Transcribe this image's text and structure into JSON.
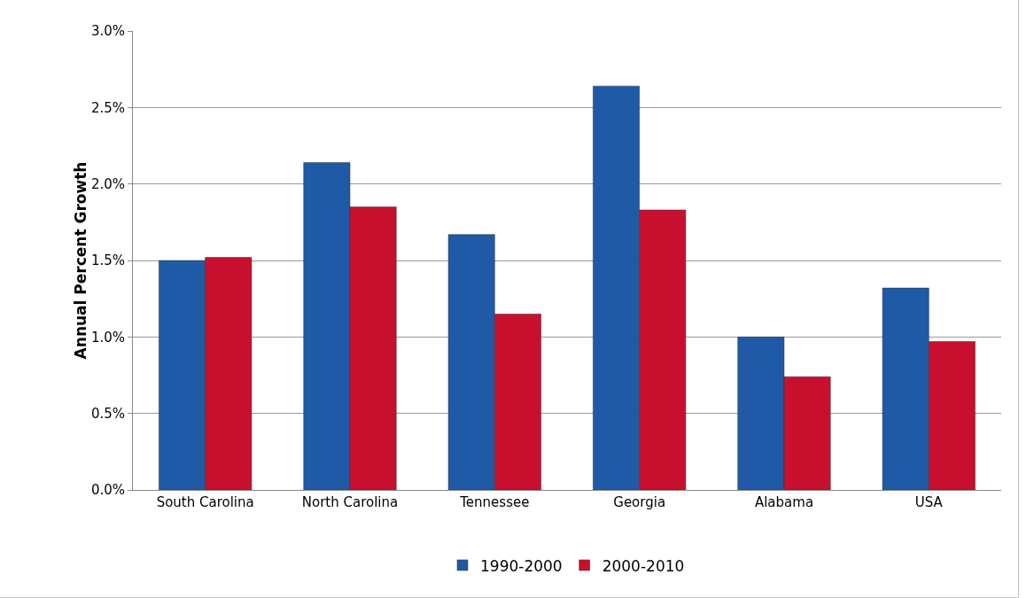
{
  "chart_data": {
    "type": "bar",
    "ylabel": "Annual Percent Growth",
    "categories": [
      "South Carolina",
      "North Carolina",
      "Tennessee",
      "Georgia",
      "Alabama",
      "USA"
    ],
    "series": [
      {
        "name": "1990-2000",
        "color": "#1f5aa6",
        "values": [
          1.5,
          2.14,
          1.67,
          2.64,
          1.0,
          1.32
        ]
      },
      {
        "name": "2000-2010",
        "color": "#c8102e",
        "values": [
          1.52,
          1.85,
          1.15,
          1.83,
          0.74,
          0.97
        ]
      }
    ],
    "ylim": [
      0,
      3
    ],
    "yticks": [
      {
        "value": 0,
        "label": "0.0%"
      },
      {
        "value": 0.5,
        "label": "0.5%"
      },
      {
        "value": 1,
        "label": "1.0%"
      },
      {
        "value": 1.5,
        "label": "1.5%"
      },
      {
        "value": 2,
        "label": "2.0%"
      },
      {
        "value": 2.5,
        "label": "2.5%"
      },
      {
        "value": 3,
        "label": "3.0%"
      }
    ],
    "grid": "y",
    "legend": "bottom"
  }
}
